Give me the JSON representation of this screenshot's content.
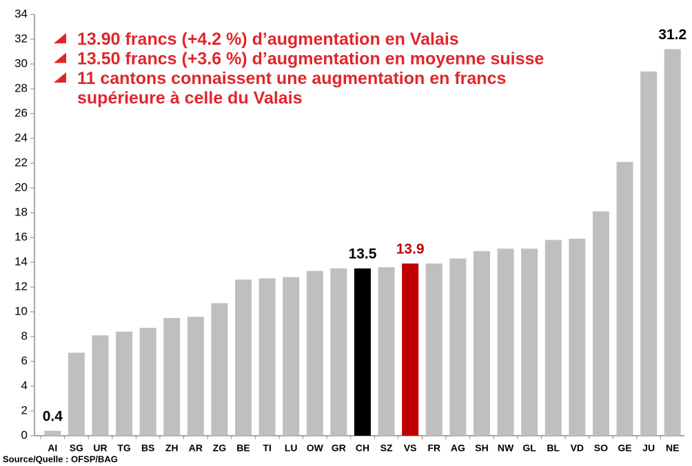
{
  "chart_data": {
    "type": "bar",
    "categories": [
      "AI",
      "SG",
      "UR",
      "TG",
      "BS",
      "ZH",
      "AR",
      "ZG",
      "BE",
      "TI",
      "LU",
      "OW",
      "GR",
      "CH",
      "SZ",
      "VS",
      "FR",
      "AG",
      "SH",
      "NW",
      "GL",
      "BL",
      "VD",
      "SO",
      "GE",
      "JU",
      "NE"
    ],
    "values": [
      0.4,
      6.7,
      8.1,
      8.4,
      8.7,
      9.5,
      9.6,
      10.7,
      12.6,
      12.7,
      12.8,
      13.3,
      13.5,
      13.5,
      13.6,
      13.9,
      13.9,
      14.3,
      14.9,
      15.1,
      15.1,
      15.8,
      15.9,
      18.1,
      22.1,
      29.4,
      31.2
    ],
    "value_labels": [
      "0.4",
      null,
      null,
      null,
      null,
      null,
      null,
      null,
      null,
      null,
      null,
      null,
      null,
      "13.5",
      null,
      "13.9",
      null,
      null,
      null,
      null,
      null,
      null,
      null,
      null,
      null,
      null,
      "31.2"
    ],
    "color": "#bfbfbf",
    "colors": [
      "#bfbfbf",
      "#bfbfbf",
      "#bfbfbf",
      "#bfbfbf",
      "#bfbfbf",
      "#bfbfbf",
      "#bfbfbf",
      "#bfbfbf",
      "#bfbfbf",
      "#bfbfbf",
      "#bfbfbf",
      "#bfbfbf",
      "#bfbfbf",
      "#000000",
      "#bfbfbf",
      "#c00000",
      "#bfbfbf",
      "#bfbfbf",
      "#bfbfbf",
      "#bfbfbf",
      "#bfbfbf",
      "#bfbfbf",
      "#bfbfbf",
      "#bfbfbf",
      "#bfbfbf",
      "#bfbfbf",
      "#bfbfbf"
    ],
    "ylim": [
      0,
      34
    ],
    "yticks": [
      0,
      2,
      4,
      6,
      8,
      10,
      12,
      14,
      16,
      18,
      20,
      22,
      24,
      26,
      28,
      30,
      32,
      34
    ],
    "grid": false,
    "annotations": [
      [
        "13.90 francs (+4.2 %) d’augmentation en Valais"
      ],
      [
        "13.50 francs (+3.6 %) d’augmentation en moyenne suisse"
      ],
      [
        "11 cantons connaissent une augmentation en francs",
        "supérieure à celle du Valais"
      ]
    ],
    "source": "Source/Quelle : OFSP/BAG"
  }
}
